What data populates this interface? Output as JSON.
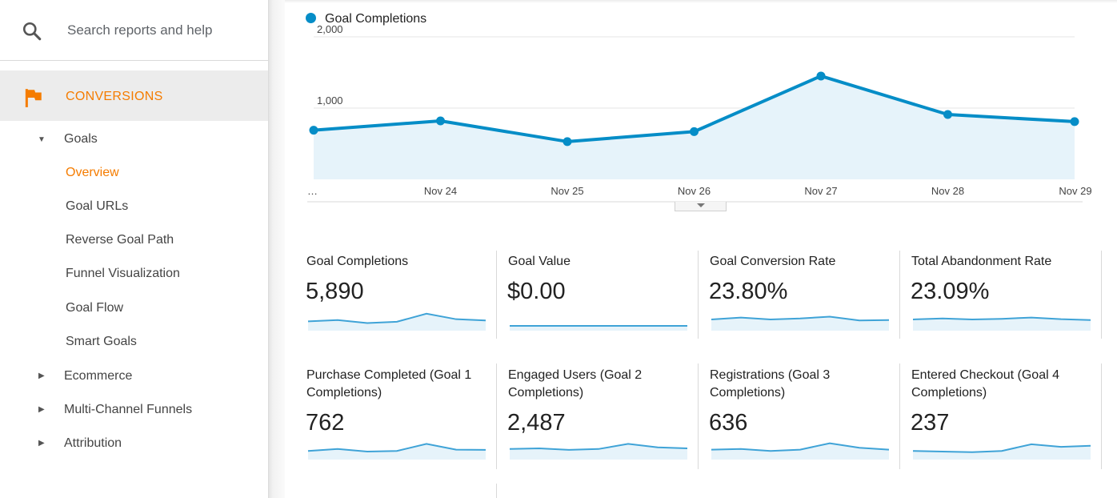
{
  "search": {
    "placeholder": "Search reports and help"
  },
  "section": {
    "label": "CONVERSIONS"
  },
  "nav": {
    "goals": "Goals",
    "items": [
      "Overview",
      "Goal URLs",
      "Reverse Goal Path",
      "Funnel Visualization",
      "Goal Flow",
      "Smart Goals"
    ],
    "collapsed": [
      "Ecommerce",
      "Multi-Channel Funnels",
      "Attribution"
    ]
  },
  "colors": {
    "accent": "#f57c00",
    "series": "#058dc7",
    "area": "#e6f3fa"
  },
  "chart_data": {
    "type": "area",
    "x": [
      "…",
      "Nov 24",
      "Nov 25",
      "Nov 26",
      "Nov 27",
      "Nov 28",
      "Nov 29"
    ],
    "series": [
      {
        "name": "Goal Completions",
        "values": [
          690,
          820,
          530,
          670,
          1450,
          910,
          810
        ]
      }
    ],
    "y_ticks": [
      "2,000",
      "1,000"
    ],
    "y_tick_values": [
      2000,
      1000
    ],
    "ylim": [
      0,
      2000
    ],
    "grid": true,
    "legend": "top-left"
  },
  "metrics": [
    {
      "title": "Goal Completions",
      "value": "5,890",
      "spark": [
        0.35,
        0.45,
        0.22,
        0.32,
        0.95,
        0.52,
        0.42
      ]
    },
    {
      "title": "Goal Value",
      "value": "$0.00",
      "spark": [
        0,
        0,
        0,
        0,
        0,
        0,
        0
      ]
    },
    {
      "title": "Goal Conversion Rate",
      "value": "23.80%",
      "spark": [
        0.5,
        0.65,
        0.5,
        0.58,
        0.72,
        0.42,
        0.45
      ]
    },
    {
      "title": "Total Abandonment Rate",
      "value": "23.09%",
      "spark": [
        0.5,
        0.58,
        0.5,
        0.55,
        0.65,
        0.52,
        0.45
      ]
    },
    {
      "title": "Purchase Completed (Goal 1 Completions)",
      "value": "762",
      "spark": [
        0.3,
        0.45,
        0.25,
        0.3,
        0.85,
        0.4,
        0.38
      ]
    },
    {
      "title": "Engaged Users (Goal 2 Completions)",
      "value": "2,487",
      "spark": [
        0.45,
        0.5,
        0.38,
        0.45,
        0.85,
        0.58,
        0.5
      ]
    },
    {
      "title": "Registrations (Goal 3 Completions)",
      "value": "636",
      "spark": [
        0.4,
        0.45,
        0.3,
        0.4,
        0.9,
        0.55,
        0.4
      ]
    },
    {
      "title": "Entered Checkout (Goal 4 Completions)",
      "value": "237",
      "spark": [
        0.3,
        0.25,
        0.2,
        0.3,
        0.82,
        0.62,
        0.7
      ]
    }
  ]
}
